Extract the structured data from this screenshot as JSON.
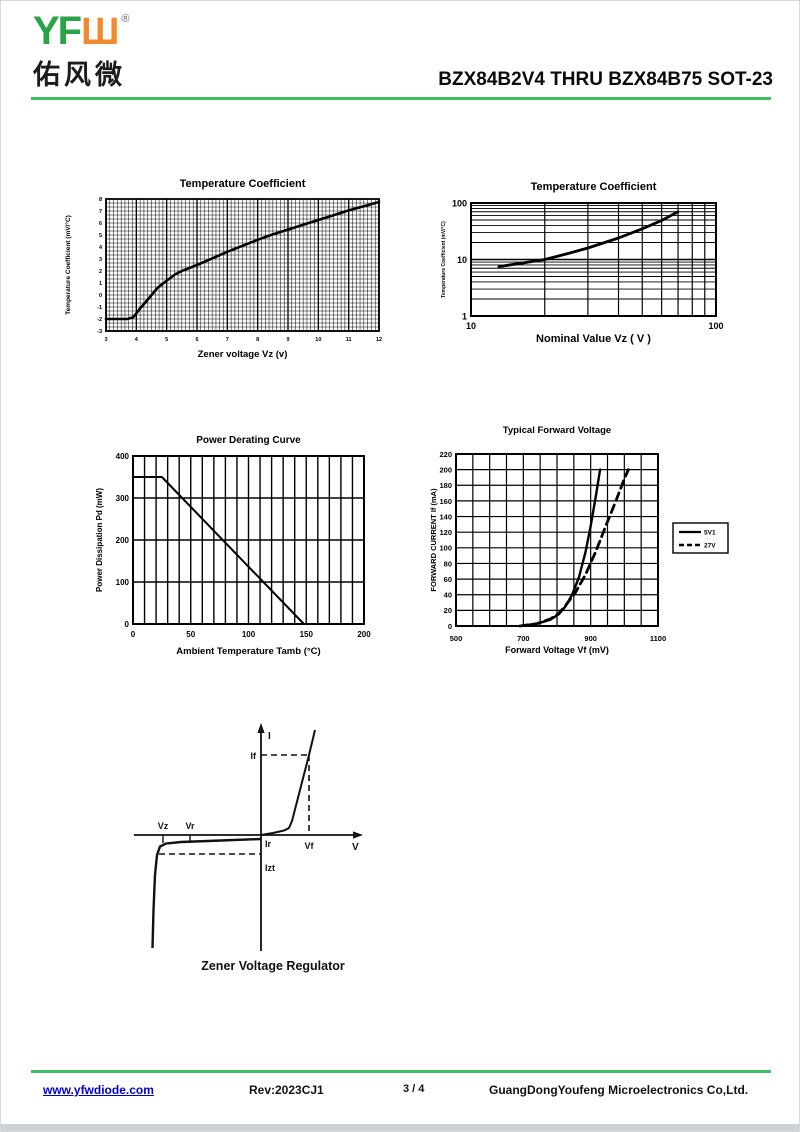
{
  "header": {
    "logo_yf": "YF",
    "logo_w": "Ш",
    "registered": "®",
    "logo_cn": "佑风微",
    "title": "BZX84B2V4 THRU BZX84B75 SOT-23"
  },
  "colors": {
    "accent_green": "#3fc161",
    "logo_green": "#2ba148",
    "logo_orange": "#f28a2d",
    "link_blue": "#0000cc",
    "ink": "#000000"
  },
  "chart_data": [
    {
      "id": "temp-coeff-linear",
      "type": "line",
      "title": "Temperature Coefficient",
      "xlabel": "Zener voltage Vz (v)",
      "ylabel": "Temperature Coefficient  (mV/°C)",
      "xlim": [
        3,
        12
      ],
      "ylim": [
        -3,
        8
      ],
      "xticks": [
        3,
        4,
        5,
        6,
        7,
        8,
        9,
        10,
        11,
        12
      ],
      "yticks": [
        -3,
        -2,
        -1,
        0,
        1,
        2,
        3,
        4,
        5,
        6,
        7,
        8
      ],
      "grid": "dense",
      "legend_position": "none",
      "series": [
        {
          "name": "temperature-coefficient",
          "points": [
            [
              3,
              -2
            ],
            [
              3.7,
              -2
            ],
            [
              3.9,
              -1.85
            ],
            [
              4.1,
              -1.2
            ],
            [
              4.4,
              -0.3
            ],
            [
              4.7,
              0.6
            ],
            [
              5.0,
              1.2
            ],
            [
              5.3,
              1.75
            ],
            [
              5.5,
              2.0
            ],
            [
              6.0,
              2.5
            ],
            [
              6.5,
              3.05
            ],
            [
              7.0,
              3.6
            ],
            [
              7.5,
              4.1
            ],
            [
              8.0,
              4.6
            ],
            [
              8.5,
              5.05
            ],
            [
              9.0,
              5.45
            ],
            [
              9.5,
              5.85
            ],
            [
              10.0,
              6.25
            ],
            [
              10.5,
              6.65
            ],
            [
              11.0,
              7.05
            ],
            [
              11.5,
              7.4
            ],
            [
              12.0,
              7.75
            ]
          ]
        }
      ]
    },
    {
      "id": "temp-coeff-log",
      "type": "line",
      "title": "Temperature Coefficient",
      "xlabel": "Nominal Value   Vz ( V )",
      "ylabel": "Temperature Coefficient  (mV/°C)",
      "xscale": "log",
      "yscale": "log",
      "xlim": [
        10,
        100
      ],
      "ylim": [
        1,
        100
      ],
      "xticks": [
        10,
        100
      ],
      "yticks": [
        1,
        10,
        100
      ],
      "grid": "log",
      "legend_position": "none",
      "series": [
        {
          "name": "temperature-coefficient",
          "points": [
            [
              13,
              7.5
            ],
            [
              16,
              8.6
            ],
            [
              20,
              10
            ],
            [
              25,
              12.8
            ],
            [
              30,
              16
            ],
            [
              40,
              24
            ],
            [
              50,
              35
            ],
            [
              60,
              49
            ],
            [
              70,
              70
            ]
          ]
        }
      ]
    },
    {
      "id": "power-derating",
      "type": "line",
      "title": "Power Derating Curve",
      "xlabel": "Ambient Temperature  Tamb (°C)",
      "ylabel": "Power Dissipation  Pd (mW)",
      "xlim": [
        0,
        200
      ],
      "ylim": [
        0,
        400
      ],
      "xticks": [
        0,
        50,
        100,
        150,
        200
      ],
      "yticks": [
        0,
        100,
        200,
        300,
        400
      ],
      "grid": "coarse",
      "legend_position": "none",
      "series": [
        {
          "name": "power-dissipation",
          "points": [
            [
              0,
              350
            ],
            [
              25,
              350
            ],
            [
              148,
              0
            ]
          ]
        }
      ]
    },
    {
      "id": "forward-voltage",
      "type": "line",
      "title": "Typical Forward Voltage",
      "xlabel": "Forward Voltage  Vf (mV)",
      "ylabel": "FORWARD CURRENT  If (mA)",
      "xlim": [
        500,
        1100
      ],
      "ylim": [
        0,
        220
      ],
      "xticks": [
        500,
        700,
        900,
        1100
      ],
      "yticks": [
        0,
        20,
        40,
        60,
        80,
        100,
        120,
        140,
        160,
        180,
        200,
        220
      ],
      "grid": "medium",
      "legend_position": "right",
      "legend": [
        "5V1",
        "27V"
      ],
      "series": [
        {
          "name": "5V1",
          "style": "solid",
          "points": [
            [
              690,
              0
            ],
            [
              740,
              3
            ],
            [
              780,
              8
            ],
            [
              805,
              15
            ],
            [
              825,
              25
            ],
            [
              845,
              40
            ],
            [
              865,
              62
            ],
            [
              885,
              95
            ],
            [
              900,
              128
            ],
            [
              915,
              165
            ],
            [
              928,
              200
            ]
          ]
        },
        {
          "name": "27V",
          "style": "dashed",
          "points": [
            [
              690,
              0
            ],
            [
              740,
              3
            ],
            [
              780,
              9
            ],
            [
              805,
              16
            ],
            [
              825,
              26
            ],
            [
              855,
              43
            ],
            [
              885,
              66
            ],
            [
              915,
              95
            ],
            [
              945,
              128
            ],
            [
              975,
              160
            ],
            [
              1000,
              188
            ],
            [
              1012,
              200
            ]
          ]
        }
      ]
    }
  ],
  "zener_diagram": {
    "caption": "Zener Voltage Regulator",
    "labels": {
      "current_axis": "I",
      "voltage_axis": "V",
      "if": "If",
      "vf": "Vf",
      "ir": "Ir",
      "izt": "Izt",
      "vz": "Vz",
      "vr": "Vr"
    }
  },
  "footer": {
    "website": "www.yfwdiode.com",
    "revision": "Rev:2023CJ1",
    "page": "3 / 4",
    "company": "GuangDongYoufeng Microelectronics Co,Ltd."
  }
}
